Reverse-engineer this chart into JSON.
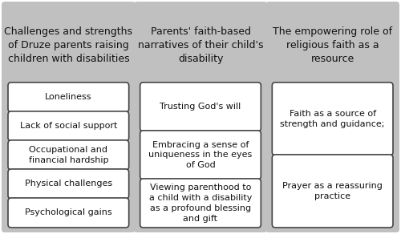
{
  "background_color": "#ffffff",
  "panel_bg_color": "#c0c0c0",
  "box_bg_color": "#ffffff",
  "box_edge_color": "#444444",
  "text_color": "#111111",
  "columns": [
    {
      "title": "Challenges and strengths\nof Druze parents raising\nchildren with disabilities",
      "items": [
        "Loneliness",
        "Lack of social support",
        "Occupational and\nfinancial hardship",
        "Physical challenges",
        "Psychological gains"
      ]
    },
    {
      "title": "Parents' faith-based\nnarratives of their child's\ndisability",
      "items": [
        "Trusting God's will",
        "Embracing a sense of\nuniqueness in the eyes\nof God",
        "Viewing parenthood to\na child with a disability\nas a profound blessing\nand gift"
      ]
    },
    {
      "title": "The empowering role of\nreligious faith as a\nresource",
      "items": [
        "Faith as a source of\nstrength and guidance;",
        "Prayer as a reassuring\npractice"
      ]
    }
  ],
  "title_fontsize": 9.0,
  "item_fontsize": 8.0,
  "fig_width": 5.0,
  "fig_height": 2.92,
  "dpi": 100
}
